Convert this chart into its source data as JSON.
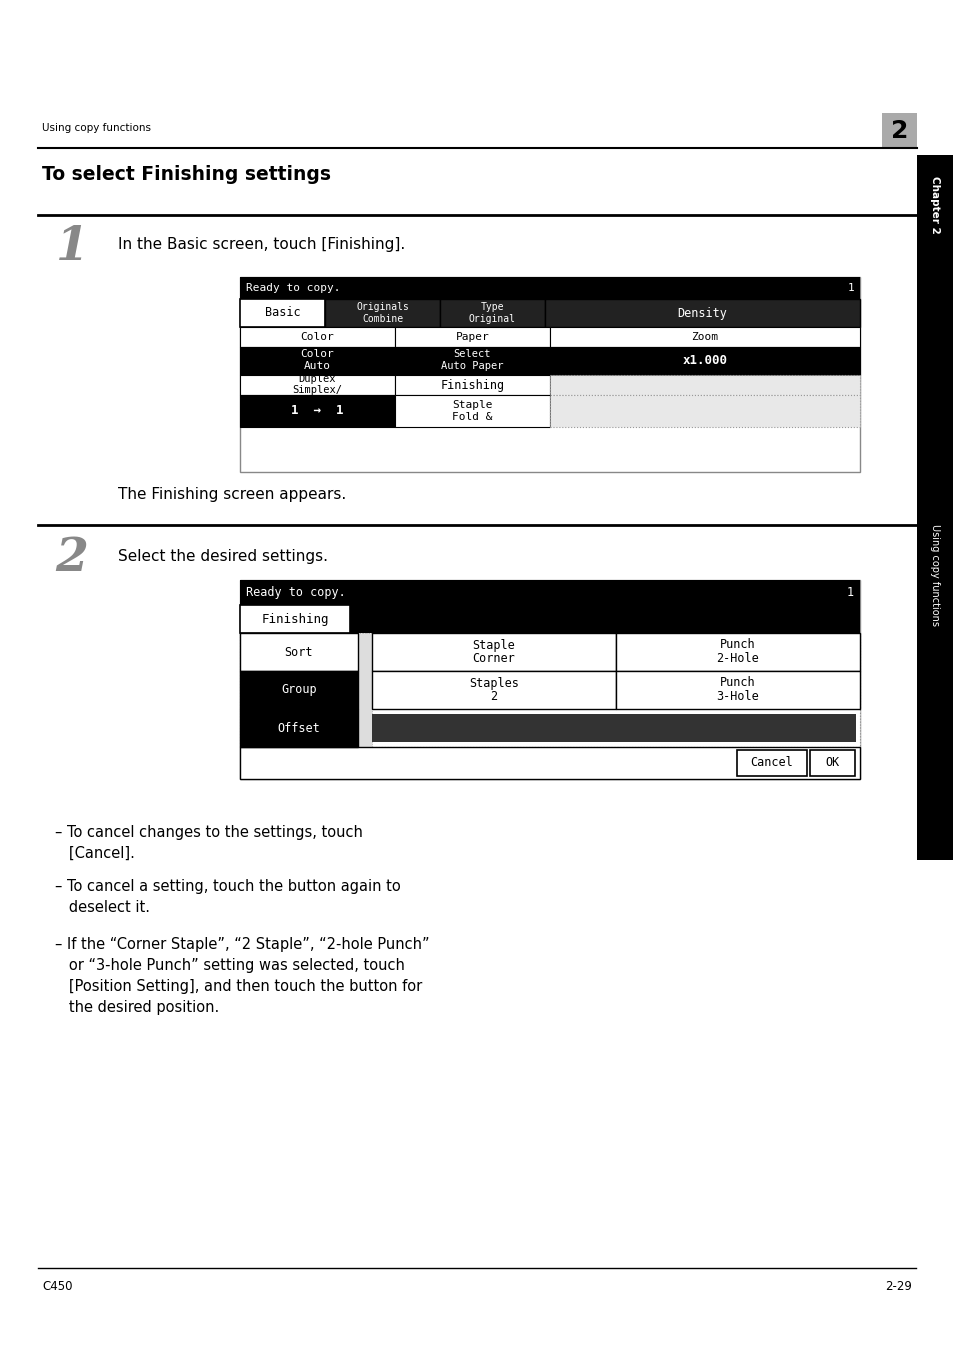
{
  "bg_color": "#ffffff",
  "header_text": "Using copy functions",
  "header_num": "2",
  "title": "To select Finishing settings",
  "step1_num": "1",
  "step1_text": "In the Basic screen, touch [Finishing].",
  "step1_caption": "The Finishing screen appears.",
  "step2_num": "2",
  "step2_text": "Select the desired settings.",
  "bullet1": "– To cancel changes to the settings, touch\n   [Cancel].",
  "bullet2": "– To cancel a setting, touch the button again to\n   deselect it.",
  "bullet3": "– If the “Corner Staple”, “2 Staple”, “2-hole Punch”\n   or “3-hole Punch” setting was selected, touch\n   [Position Setting], and then touch the button for\n   the desired position.",
  "footer_left": "C450",
  "footer_right": "2-29",
  "sidebar_text": "Using copy functions",
  "sidebar_ch": "Chapter 2"
}
